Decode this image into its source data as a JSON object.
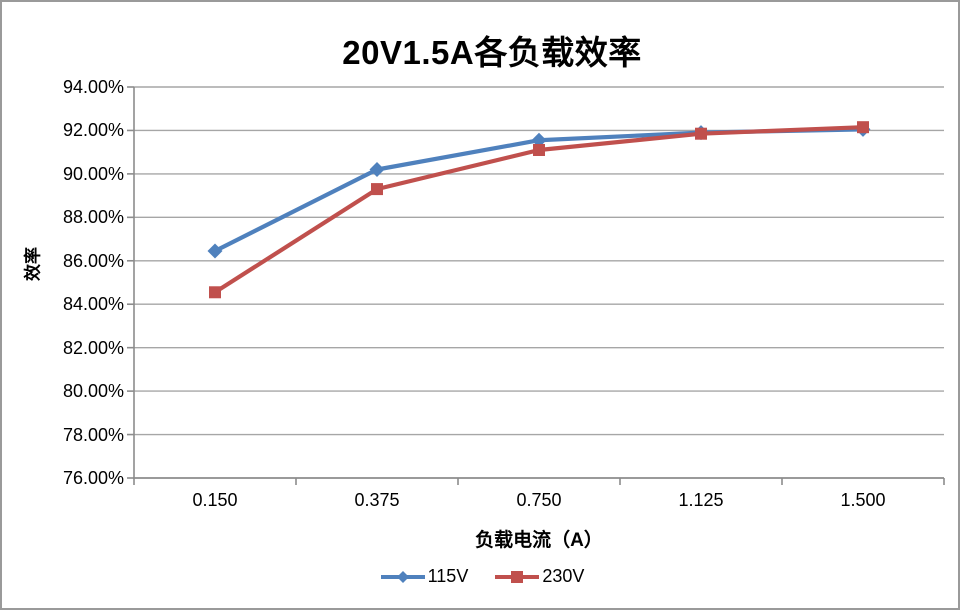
{
  "page": {
    "background": "#ffffff",
    "border_color": "#9a9a9a"
  },
  "chart_data": {
    "type": "line",
    "title": "20V1.5A各负载效率",
    "xlabel": "负载电流（A）",
    "ylabel": "效率",
    "categories": [
      "0.150",
      "0.375",
      "0.750",
      "1.125",
      "1.500"
    ],
    "series": [
      {
        "name": "115V",
        "color": "#4F81BD",
        "marker": "diamond",
        "values": [
          86.45,
          90.2,
          91.55,
          91.9,
          92.05
        ]
      },
      {
        "name": "230V",
        "color": "#C0504D",
        "marker": "square",
        "values": [
          84.55,
          89.3,
          91.1,
          91.85,
          92.15
        ]
      }
    ],
    "ylim": [
      76,
      94
    ],
    "y_tick_step": 2,
    "y_ticks": [
      "94.00%",
      "92.00%",
      "90.00%",
      "88.00%",
      "86.00%",
      "84.00%",
      "82.00%",
      "80.00%",
      "78.00%",
      "76.00%"
    ],
    "grid": "horizontal",
    "gridline_color": "#a6a6a6",
    "axis_color": "#8c8c8c",
    "text_color": "#000000",
    "legend_position": "bottom"
  }
}
